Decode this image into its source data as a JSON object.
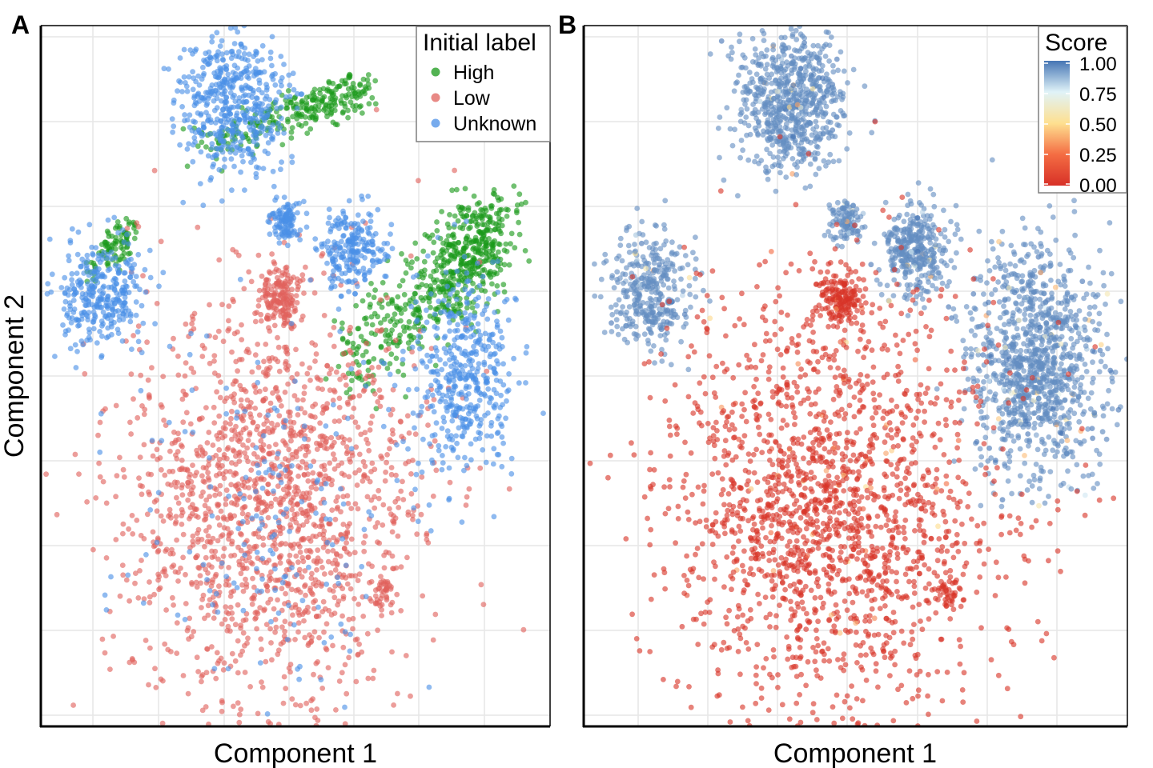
{
  "figure": {
    "panels": [
      {
        "letter": "A",
        "xlabel": "Component 1",
        "ylabel": "Component 2",
        "legend": {
          "title": "Initial label",
          "entries": [
            {
              "label": "High",
              "color": "#1a9a1a"
            },
            {
              "label": "Low",
              "color": "#e0615c"
            },
            {
              "label": "Unknown",
              "color": "#4a8fe7"
            }
          ]
        }
      },
      {
        "letter": "B",
        "xlabel": "Component 1",
        "ylabel": "",
        "colorbar": {
          "title": "Score",
          "ticks": [
            "1.00",
            "0.75",
            "0.50",
            "0.25",
            "0.00"
          ],
          "colors": [
            "#4575b4",
            "#e0f3f8",
            "#fee090",
            "#f46d43",
            "#d73027"
          ]
        }
      }
    ]
  },
  "chart_data": [
    {
      "type": "scatter",
      "title": "",
      "xlabel": "Component 1",
      "ylabel": "Component 2",
      "xlim": [
        0,
        100
      ],
      "ylim": [
        0,
        100
      ],
      "grid": true,
      "legend_position": "top-right",
      "color_by": "Initial label",
      "series": [
        {
          "name": "High",
          "color": "#1a9a1a",
          "clusters": [
            {
              "x": [
                30,
                64,
                42
              ],
              "y": [
                82,
                91,
                86
              ],
              "n": 260,
              "spread": [
                5,
                3
              ]
            },
            {
              "x": [
                62,
                90,
                78
              ],
              "y": [
                52,
                72,
                62
              ],
              "n": 620,
              "spread": [
                10,
                7
              ]
            },
            {
              "x": [
                8,
                18,
                12
              ],
              "y": [
                64,
                71,
                67
              ],
              "n": 90,
              "spread": [
                3,
                3
              ]
            }
          ]
        },
        {
          "name": "Low",
          "color": "#e0615c",
          "clusters": [
            {
              "cx": 45,
              "cy": 32,
              "n": 1700,
              "spread": [
                15,
                15
              ]
            },
            {
              "cx": 47,
              "cy": 61,
              "n": 160,
              "spread": [
                2,
                2
              ]
            },
            {
              "cx": 67,
              "cy": 19,
              "n": 40,
              "spread": [
                1.2,
                1.2
              ]
            }
          ]
        },
        {
          "name": "Unknown",
          "color": "#4a8fe7",
          "clusters": [
            {
              "cx": 38,
              "cy": 89,
              "n": 500,
              "spread": [
                5,
                5
              ]
            },
            {
              "cx": 12,
              "cy": 62,
              "n": 320,
              "spread": [
                4,
                4
              ]
            },
            {
              "cx": 48,
              "cy": 72,
              "n": 110,
              "spread": [
                1.5,
                1.5
              ]
            },
            {
              "cx": 61,
              "cy": 68,
              "n": 230,
              "spread": [
                3,
                3
              ]
            },
            {
              "cx": 83,
              "cy": 50,
              "n": 450,
              "spread": [
                5,
                7
              ]
            },
            {
              "cx": 45,
              "cy": 32,
              "n": 180,
              "spread": [
                14,
                14
              ]
            }
          ]
        }
      ]
    },
    {
      "type": "scatter",
      "title": "",
      "xlabel": "Component 1",
      "ylabel": "",
      "xlim": [
        0,
        100
      ],
      "ylim": [
        0,
        100
      ],
      "grid": true,
      "legend_position": "top-right",
      "color_by": "Score",
      "color_range": [
        0,
        1
      ],
      "series": [
        {
          "name": "Score",
          "clusters": [
            {
              "cx": 38,
              "cy": 89,
              "n": 720,
              "spread": [
                5,
                5
              ],
              "score": 0.95
            },
            {
              "cx": 12,
              "cy": 62,
              "n": 360,
              "spread": [
                4,
                4
              ],
              "score": 0.95
            },
            {
              "cx": 48,
              "cy": 72,
              "n": 110,
              "spread": [
                1.5,
                1.5
              ],
              "score": 0.95
            },
            {
              "cx": 61,
              "cy": 68,
              "n": 350,
              "spread": [
                3,
                3
              ],
              "score": 0.95
            },
            {
              "cx": 83,
              "cy": 52,
              "n": 1100,
              "spread": [
                6,
                8
              ],
              "score": 0.95
            },
            {
              "cx": 45,
              "cy": 32,
              "n": 1900,
              "spread": [
                15,
                15
              ],
              "score": 0.02
            },
            {
              "cx": 47,
              "cy": 61,
              "n": 160,
              "spread": [
                2,
                2
              ],
              "score": 0.02
            },
            {
              "cx": 67,
              "cy": 19,
              "n": 40,
              "spread": [
                1.2,
                1.2
              ],
              "score": 0.02
            }
          ]
        }
      ]
    }
  ]
}
